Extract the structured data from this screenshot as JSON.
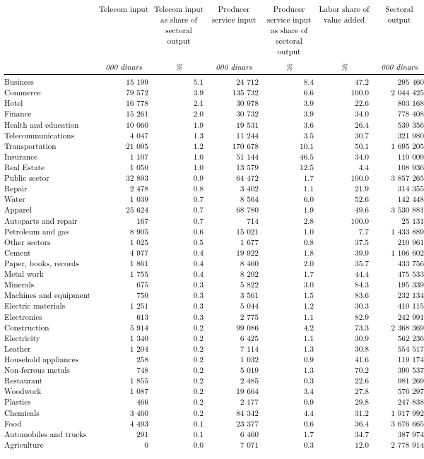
{
  "columns": [
    {
      "head": "Telecom input",
      "unit": "000 dinars"
    },
    {
      "head": "Telecom input as share of sectoral output",
      "unit": "%"
    },
    {
      "head": "Producer service input",
      "unit": "000 dinars"
    },
    {
      "head": "Producer service input as share of sectoral output",
      "unit": "%"
    },
    {
      "head": "Labor share of value added",
      "unit": "%"
    },
    {
      "head": "Sectoral output",
      "unit": "000 dinars"
    }
  ],
  "rows": [
    [
      "Business",
      "15 199",
      "5.1",
      "24 712",
      "8.4",
      "47.2",
      "295 460"
    ],
    [
      "Commerce",
      "79 572",
      "3.9",
      "135 732",
      "6.6",
      "100.0",
      "2 044 425"
    ],
    [
      "Hotel",
      "16 778",
      "2.1",
      "30 978",
      "3.9",
      "22.6",
      "803 168"
    ],
    [
      "Finance",
      "15 261",
      "2.0",
      "30 732",
      "3.9",
      "34.0",
      "778 408"
    ],
    [
      "Health and education",
      "10 060",
      "1.9",
      "19 531",
      "3.6",
      "26.4",
      "539 356"
    ],
    [
      "Telecommunications",
      "4 047",
      "1.3",
      "11 244",
      "3.5",
      "30.7",
      "321 980"
    ],
    [
      "Transportation",
      "21 095",
      "1.2",
      "170 678",
      "10.1",
      "50.1",
      "1 695 205"
    ],
    [
      "Insurance",
      "1 107",
      "1.0",
      "51 144",
      "46.5",
      "34.0",
      "110 009"
    ],
    [
      "Real Estate",
      "1 050",
      "1.0",
      "13 579",
      "12.5",
      "4.4",
      "108 936"
    ],
    [
      "Public sector",
      "32 893",
      "0.9",
      "64 472",
      "1.7",
      "100.0",
      "3 857 265"
    ],
    [
      "Repair",
      "2 478",
      "0.8",
      "3 402",
      "1.1",
      "21.9",
      "314 355"
    ],
    [
      "Water",
      "1 039",
      "0.7",
      "8 564",
      "6.0",
      "52.6",
      "142 448"
    ],
    [
      "Apparel",
      "25 624",
      "0.7",
      "68 780",
      "1.9",
      "49.6",
      "3 530 881"
    ],
    [
      "Autoparts and repair",
      "167",
      "0.7",
      "714",
      "2.8",
      "100.0",
      "25 131"
    ],
    [
      "Petroleum and gas",
      "8 905",
      "0.6",
      "15 021",
      "1.0",
      "7.7",
      "1 433 889"
    ],
    [
      "Other sectors",
      "1 025",
      "0.5",
      "1 677",
      "0.8",
      "37.5",
      "210 961"
    ],
    [
      "Cement",
      "4 977",
      "0.4",
      "19 922",
      "1.8",
      "39.9",
      "1 106 602"
    ],
    [
      "Paper, books, records",
      "1 861",
      "0.4",
      "8 460",
      "2.0",
      "35.7",
      "433 756"
    ],
    [
      "Metal work",
      "1 755",
      "0.4",
      "8 292",
      "1.7",
      "44.4",
      "475 533"
    ],
    [
      "Minerals",
      "675",
      "0.3",
      "5 822",
      "3.0",
      "84.3",
      "195 339"
    ],
    [
      "Machines and equipment",
      "750",
      "0.3",
      "3 561",
      "1.5",
      "83.6",
      "232 134"
    ],
    [
      "Electric materials",
      "1 251",
      "0.3",
      "5 044",
      "1.2",
      "30.3",
      "410 115"
    ],
    [
      "Electronics",
      "613",
      "0.3",
      "2 775",
      "1.1",
      "82.9",
      "242 991"
    ],
    [
      "Construction",
      "5 914",
      "0.2",
      "99 086",
      "4.2",
      "73.3",
      "2 368 369"
    ],
    [
      "Electricity",
      "1 340",
      "0.2",
      "6 425",
      "1.1",
      "30.9",
      "562 236"
    ],
    [
      "Leather",
      "1 204",
      "0.2",
      "7 114",
      "1.3",
      "30.8",
      "554 517"
    ],
    [
      "Household appliances",
      "258",
      "0.2",
      "1 032",
      "0.9",
      "41.6",
      "119 174"
    ],
    [
      "Non-ferrous metals",
      "748",
      "0.2",
      "5 019",
      "1.3",
      "70.2",
      "390 537"
    ],
    [
      "Restaurant",
      "1 855",
      "0.2",
      "2 485",
      "0.3",
      "22.6",
      "981 269"
    ],
    [
      "Woodwork",
      "1 087",
      "0.2",
      "19 664",
      "3.4",
      "27.8",
      "576 297"
    ],
    [
      "Plastics",
      "466",
      "0.2",
      "2 177",
      "0.9",
      "29.8",
      "247 838"
    ],
    [
      "Chemicals",
      "3 460",
      "0.2",
      "84 342",
      "4.4",
      "31.2",
      "1 917 992"
    ],
    [
      "Food",
      "4 493",
      "0.1",
      "23 377",
      "0.6",
      "36.4",
      "3 676 665"
    ],
    [
      "Automobiles and trucks",
      "291",
      "0.1",
      "6 460",
      "1.7",
      "34.7",
      "387 974"
    ],
    [
      "Agriculture",
      "0",
      "0.0",
      "7 071",
      "0.3",
      "12.0",
      "2 778 914"
    ]
  ]
}
